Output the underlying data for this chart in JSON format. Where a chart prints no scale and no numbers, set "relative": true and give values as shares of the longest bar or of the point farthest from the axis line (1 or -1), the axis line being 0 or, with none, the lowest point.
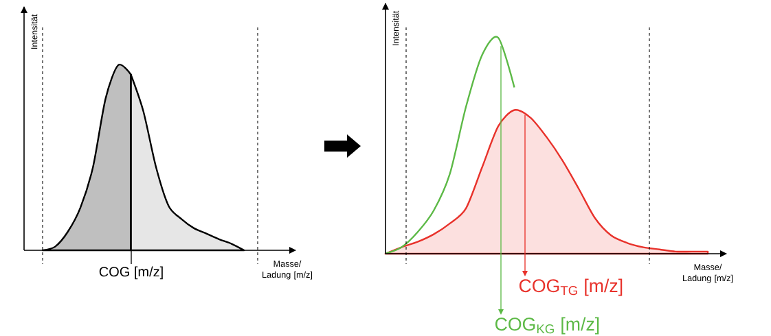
{
  "chart_data": [
    {
      "type": "area",
      "relative": true,
      "xlabel": "Masse/ Ladung [m/z]",
      "ylabel": "Intensität",
      "categories": [
        null,
        null,
        null,
        null,
        null,
        null,
        null,
        null,
        null,
        null,
        null,
        null,
        null,
        null,
        null,
        null,
        null
      ],
      "series": [
        {
          "color": "#bfbfbf",
          "values": [
            0,
            0.02,
            0.1,
            0.23,
            0.45,
            0.82,
            1,
            0.95,
            null,
            null,
            null,
            null,
            null,
            null,
            null,
            null,
            null
          ]
        },
        {
          "color": "#e6e6e6",
          "values": [
            null,
            null,
            null,
            null,
            null,
            null,
            null,
            0.95,
            0.75,
            0.45,
            0.24,
            0.17,
            0.12,
            0.09,
            0.06,
            0.035,
            0
          ]
        }
      ],
      "annotations": [
        "COG [m/z]"
      ]
    },
    {
      "type": "area",
      "relative": true,
      "xlabel": "Masse/ Ladung [m/z]",
      "ylabel": "Intensität",
      "categories": [
        null,
        null,
        null,
        null,
        null,
        null,
        null,
        null,
        null,
        null,
        null,
        null,
        null,
        null,
        null,
        null,
        null,
        null,
        null,
        null,
        null
      ],
      "series": [
        {
          "color": "#e8322b",
          "values": [
            0,
            0.03,
            0.055,
            0.09,
            0.14,
            0.21,
            0.4,
            0.59,
            0.665,
            0.63,
            0.54,
            0.43,
            0.3,
            0.165,
            0.085,
            0.05,
            0.03,
            0.02,
            0.01,
            0.01,
            0.01
          ]
        },
        {
          "type": "line",
          "color": "#5cb946",
          "values": [
            0,
            0.03,
            0.1,
            0.2,
            0.37,
            0.68,
            0.92,
            1,
            0.77,
            null,
            null,
            null,
            null,
            null,
            null,
            null,
            null,
            null,
            null,
            null,
            null
          ]
        }
      ],
      "annotations": [
        "COG$_{TG}$ [m/z]",
        "COG$_{KG}$ [m/z]"
      ]
    }
  ]
}
